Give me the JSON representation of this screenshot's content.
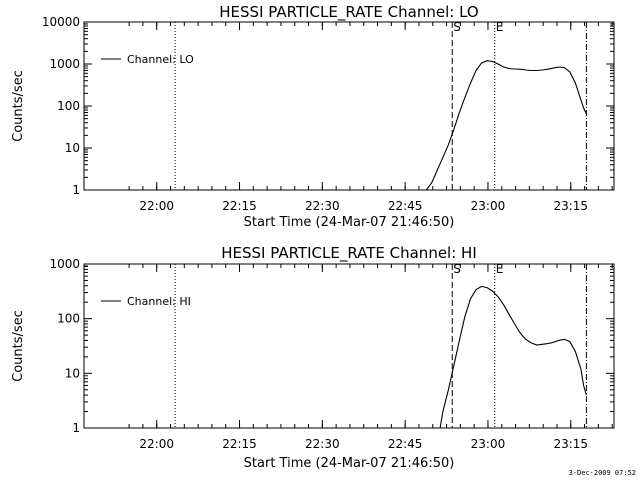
{
  "stamp": "3-Dec-2009 07:52",
  "chart_data": [
    {
      "type": "line",
      "title": "HESSI PARTICLE_RATE Channel: LO",
      "xlabel": "Start Time (24-Mar-07 21:46:50)",
      "ylabel": "Counts/sec",
      "legend": "Channel: LO",
      "legend_position": "top-left",
      "y_scale": "log",
      "ylim": [
        1,
        10000
      ],
      "yticks": [
        1,
        10,
        100,
        1000,
        10000
      ],
      "ytick_labels": [
        "1",
        "10",
        "100",
        "1000",
        "10000"
      ],
      "xlim_minutes": [
        0,
        96
      ],
      "xtick_minutes": [
        13.17,
        28.17,
        43.17,
        58.17,
        73.17,
        88.17
      ],
      "xtick_labels": [
        "22:00",
        "22:15",
        "22:30",
        "22:45",
        "23:00",
        "23:15"
      ],
      "markers": [
        {
          "label": "",
          "minute": 16.5,
          "style": "dotted"
        },
        {
          "label": "S",
          "minute": 66.7,
          "style": "dashed"
        },
        {
          "label": "E",
          "minute": 74.4,
          "style": "dotted"
        },
        {
          "label": "",
          "minute": 91.0,
          "style": "dashdot"
        }
      ],
      "x": [
        62.0,
        63.0,
        64.0,
        65.0,
        66.0,
        67.0,
        68.0,
        69.0,
        70.0,
        71.0,
        72.0,
        73.0,
        74.0,
        75.0,
        76.0,
        77.0,
        78.0,
        79.0,
        80.0,
        81.0,
        82.0,
        83.0,
        84.0,
        85.0,
        86.0,
        87.0,
        88.0,
        89.0,
        90.0,
        90.5,
        91.0
      ],
      "y": [
        1.0,
        1.5,
        3,
        6,
        12,
        28,
        70,
        160,
        350,
        700,
        1050,
        1200,
        1150,
        1000,
        850,
        780,
        760,
        750,
        720,
        700,
        700,
        720,
        750,
        800,
        850,
        820,
        650,
        350,
        140,
        90,
        65
      ]
    },
    {
      "type": "line",
      "title": "HESSI PARTICLE_RATE Channel: HI",
      "xlabel": "Start Time (24-Mar-07 21:46:50)",
      "ylabel": "Counts/sec",
      "legend": "Channel: HI",
      "legend_position": "top-left",
      "y_scale": "log",
      "ylim": [
        1,
        1000
      ],
      "yticks": [
        1,
        10,
        100,
        1000
      ],
      "ytick_labels": [
        "1",
        "10",
        "100",
        "1000"
      ],
      "xlim_minutes": [
        0,
        96
      ],
      "xtick_minutes": [
        13.17,
        28.17,
        43.17,
        58.17,
        73.17,
        88.17
      ],
      "xtick_labels": [
        "22:00",
        "22:15",
        "22:30",
        "22:45",
        "23:00",
        "23:15"
      ],
      "markers": [
        {
          "label": "",
          "minute": 16.5,
          "style": "dotted"
        },
        {
          "label": "S",
          "minute": 66.7,
          "style": "dashed"
        },
        {
          "label": "E",
          "minute": 74.4,
          "style": "dotted"
        },
        {
          "label": "",
          "minute": 91.0,
          "style": "dashdot"
        }
      ],
      "x": [
        64.5,
        65.0,
        66.0,
        67.0,
        68.0,
        69.0,
        70.0,
        71.0,
        72.0,
        73.0,
        74.0,
        75.0,
        76.0,
        77.0,
        78.0,
        79.0,
        80.0,
        81.0,
        82.0,
        83.0,
        84.0,
        85.0,
        86.0,
        87.0,
        88.0,
        89.0,
        90.0,
        90.5,
        91.0
      ],
      "y": [
        1.0,
        2,
        5,
        14,
        40,
        110,
        230,
        340,
        390,
        370,
        320,
        250,
        180,
        120,
        80,
        55,
        42,
        36,
        33,
        34,
        35,
        37,
        40,
        42,
        38,
        25,
        12,
        6,
        4
      ]
    }
  ]
}
